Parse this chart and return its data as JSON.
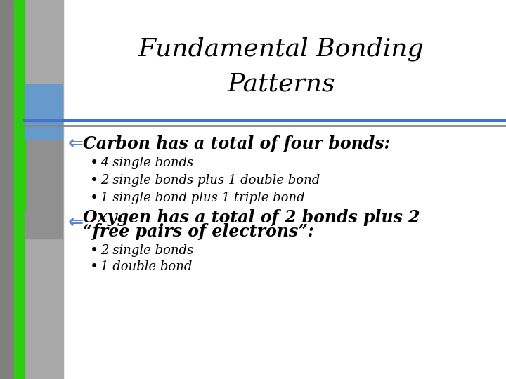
{
  "title_line1": "Fundamental Bonding",
  "title_line2": "Patterns",
  "bg_color": "#BEBEBE",
  "content_bg": "#FFFFFF",
  "left_strip_dark_gray": "#808080",
  "left_strip_green": "#2ECC11",
  "left_rect_blue": "#6699CC",
  "left_rect_gray": "#A0A0A0",
  "header_line_color_blue": "#4472C4",
  "header_line_color_gray": "#888888",
  "bullet_color": "#5588CC",
  "text_color": "#000000",
  "title_color": "#000000",
  "title_fontsize": 26,
  "header_fontsize": 17,
  "bullet_fontsize": 13,
  "section1_header": "Carbon has a total of four bonds:",
  "section1_bullets": [
    "4 single bonds",
    "2 single bonds plus 1 double bond",
    "1 single bond plus 1 triple bond"
  ],
  "section2_header1": "Oxygen has a total of 2 bonds plus 2",
  "section2_header2": "“free pairs of electrons”:",
  "section2_bullets": [
    "2 single bonds",
    "1 double bond"
  ]
}
